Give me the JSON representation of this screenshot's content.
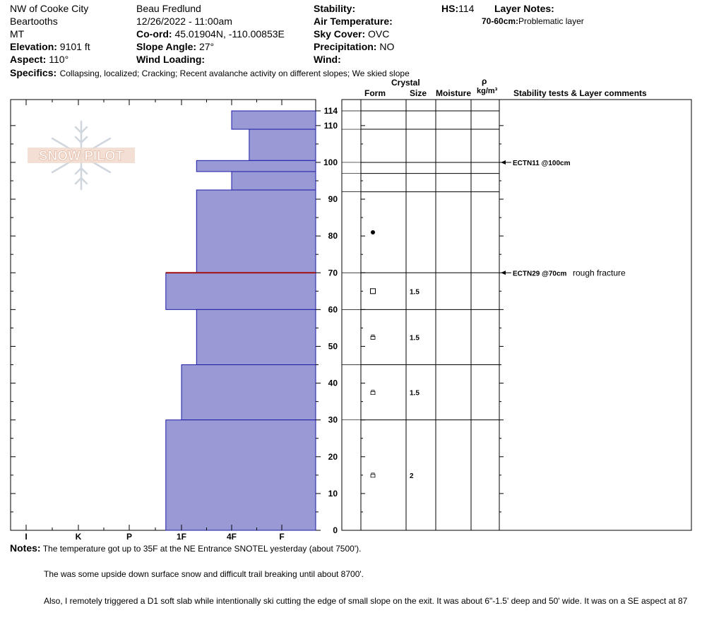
{
  "header": {
    "location": "NW of Cooke City",
    "range": "Beartooths",
    "state": "MT",
    "elevation_label": "Elevation:",
    "elevation": "9101 ft",
    "aspect_label": "Aspect:",
    "aspect": "110°",
    "observer": "Beau  Fredlund",
    "datetime": "12/26/2022 - 11:00am",
    "coord_label": "Co-ord:",
    "coord": "45.01904N, -110.00853E",
    "slope_label": "Slope Angle:",
    "slope": "27°",
    "wind_loading_label": "Wind Loading:",
    "wind_loading": "",
    "stability_label": "Stability:",
    "stability": "",
    "air_temp_label": "Air Temperature:",
    "air_temp": "",
    "sky_label": "Sky Cover:",
    "sky": "OVC",
    "precip_label": "Precipitation:",
    "precip": "NO",
    "wind_label": "Wind:",
    "wind": "",
    "hs_label": "HS:",
    "hs": "114",
    "layer_notes_label": "Layer Notes:",
    "layer_note_range": "70-60cm:",
    "layer_note_text": "Problematic layer",
    "specifics_label": "Specifics:",
    "specifics": "Collapsing, localized; Cracking; Recent avalanche activity on different slopes; We skied slope"
  },
  "logo": {
    "text": "SNOW PILOT"
  },
  "columns": {
    "crystal": "Crystal",
    "form": "Form",
    "size": "Size",
    "moisture": "Moisture",
    "rho": "ρ",
    "density_unit": "kg/m³",
    "comments": "Stability tests & Layer comments"
  },
  "chart_data": {
    "type": "bar",
    "title": "",
    "x_axis": {
      "labels": [
        "I",
        "K",
        "P",
        "1F",
        "4F",
        "F"
      ],
      "meaning": "hand hardness"
    },
    "y_axis": {
      "range": [
        0,
        114
      ],
      "ticks": [
        0,
        10,
        20,
        30,
        40,
        50,
        60,
        70,
        80,
        90,
        100,
        110,
        114
      ]
    },
    "hardness_layers": [
      {
        "top": 114,
        "bottom": 109,
        "hardness": "4F"
      },
      {
        "top": 109,
        "bottom": 100.5,
        "hardness": "4F+"
      },
      {
        "top": 100.5,
        "bottom": 97.5,
        "hardness": "1F+"
      },
      {
        "top": 97.5,
        "bottom": 92.5,
        "hardness": "4F"
      },
      {
        "top": 92.5,
        "bottom": 70,
        "hardness": "1F+"
      },
      {
        "top": 70,
        "bottom": 60,
        "hardness": "1F-"
      },
      {
        "top": 60,
        "bottom": 45,
        "hardness": "1F+"
      },
      {
        "top": 45,
        "bottom": 30,
        "hardness": "1F"
      },
      {
        "top": 30,
        "bottom": 0,
        "hardness": "1F-"
      }
    ],
    "hardness_index": {
      "I": 0,
      "K": 1,
      "P": 2,
      "1F": 3,
      "1F+": 3.3,
      "1F-": 2.7,
      "4F": 4,
      "4F+": 4.35,
      "F": 5
    },
    "problem_layer": {
      "top": 70,
      "bottom": 60
    },
    "layer_boundaries": [
      114,
      109,
      100,
      97,
      92,
      70,
      60,
      45,
      30,
      0
    ],
    "crystals": [
      {
        "depth": 81,
        "symbol": "dot",
        "size": ""
      },
      {
        "depth": 65,
        "symbol": "square",
        "size": "1.5"
      },
      {
        "depth": 52.5,
        "symbol": "lock",
        "size": "1.5"
      },
      {
        "depth": 37.5,
        "symbol": "lock",
        "size": "1.5"
      },
      {
        "depth": 15,
        "symbol": "lock",
        "size": "2"
      }
    ],
    "tests": [
      {
        "depth": 100,
        "label": "ECTN11 @100cm",
        "comment": ""
      },
      {
        "depth": 70,
        "label": "ECTN29 @70cm",
        "comment": "rough fracture"
      }
    ]
  },
  "notes": {
    "label": "Notes:",
    "line1": "The temperature got up to 35F at the NE Entrance SNOTEL yesterday (about 7500').",
    "line2": "The was some upside down surface snow and difficult trail breaking until about 8700'.",
    "line3": "Also, I remotely triggered a D1 soft slab while intentionally ski cutting the edge of small slope on the exit.  It was about 6\"-1.5' deep and 50' wide.  It was on a SE aspect at 87"
  }
}
